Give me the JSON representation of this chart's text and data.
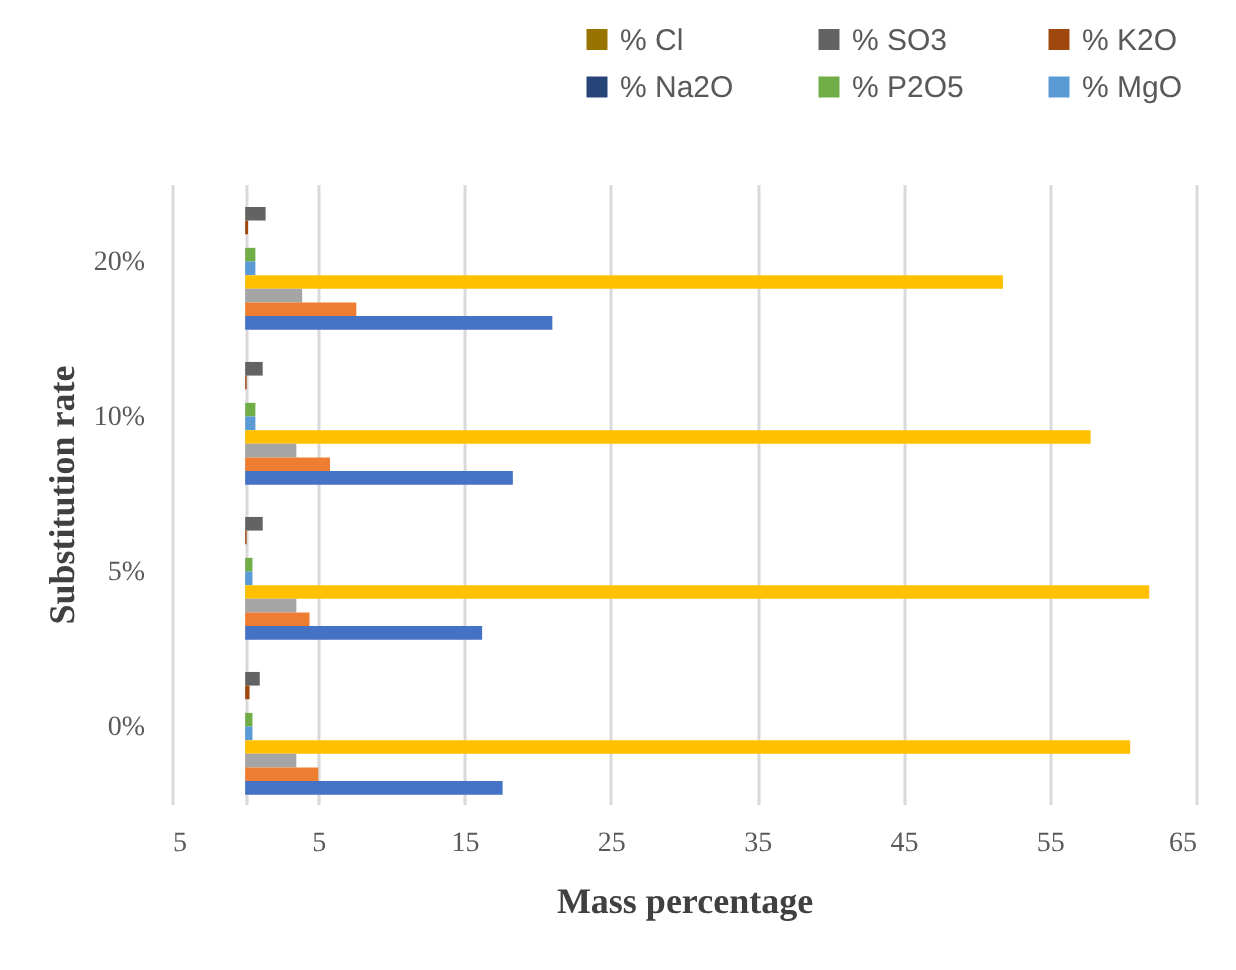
{
  "chart_data": {
    "type": "bar",
    "orientation": "horizontal",
    "xlabel": "Mass percentage",
    "ylabel": "Substitution rate",
    "categories": [
      "20%",
      "10%",
      "5%",
      "0%"
    ],
    "xlim": [
      -5,
      65
    ],
    "xticks": [
      {
        "value": -5,
        "label": "5"
      },
      {
        "value": 0,
        "label": null
      },
      5,
      15,
      25,
      35,
      45,
      55,
      65
    ],
    "grid": "x",
    "legend": "top",
    "series": [
      {
        "name": "% Cl",
        "color": "#997300",
        "values": [
          0,
          0,
          0,
          0
        ]
      },
      {
        "name": "% SO3",
        "color": "#636363",
        "values": [
          1.4,
          1.2,
          1.2,
          1.0
        ]
      },
      {
        "name": "% K2O",
        "color": "#9e480e",
        "values": [
          0.2,
          0.1,
          0.1,
          0.3
        ]
      },
      {
        "name": "% Na2O",
        "color": "#264478",
        "values": [
          0,
          0,
          0,
          0
        ]
      },
      {
        "name": "% P2O5",
        "color": "#70ad47",
        "values": [
          0.7,
          0.7,
          0.5,
          0.5
        ]
      },
      {
        "name": "% MgO",
        "color": "#5b9bd5",
        "values": [
          0.7,
          0.7,
          0.5,
          0.5
        ]
      },
      {
        "color": "#ffc000",
        "values": [
          51.8,
          57.8,
          61.8,
          60.5
        ]
      },
      {
        "color": "#a5a5a5",
        "values": [
          3.9,
          3.5,
          3.5,
          3.5
        ]
      },
      {
        "color": "#ed7d31",
        "values": [
          7.6,
          5.8,
          4.4,
          5.0
        ]
      },
      {
        "color": "#4472c4",
        "values": [
          21.0,
          18.3,
          16.2,
          17.6
        ]
      }
    ]
  }
}
